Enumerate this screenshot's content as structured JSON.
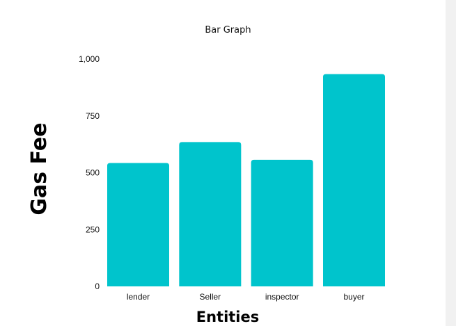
{
  "chart_data": {
    "type": "bar",
    "title": "Bar Graph",
    "xlabel": "Entities",
    "ylabel": "Gas Fee",
    "categories": [
      "lender",
      "Seller",
      "inspector",
      "buyer"
    ],
    "values": [
      543,
      635,
      557,
      934
    ],
    "ylim": [
      0,
      1000
    ],
    "yticks": [
      0,
      250,
      500,
      750,
      1000
    ],
    "ytick_labels": [
      "0",
      "250",
      "500",
      "750",
      "1,000"
    ],
    "bar_color": "#00c4cc",
    "grid": false,
    "legend": "none"
  }
}
